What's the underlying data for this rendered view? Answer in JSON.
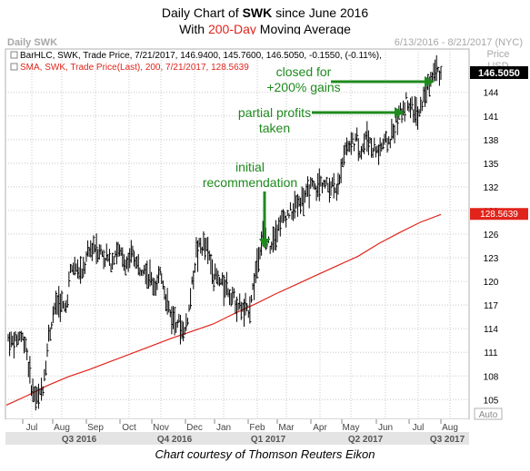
{
  "title": {
    "prefix": "Daily Chart of ",
    "ticker": "SWK",
    "suffix": " since June 2016",
    "line2_prefix": "With ",
    "line2_highlight": "200-Day",
    "line2_suffix": " Moving Average"
  },
  "panel": {
    "name": "Daily SWK",
    "date_range": "6/13/2016 - 8/21/2017 (NYC)",
    "price_header": "Price",
    "currency": "USD",
    "auto_label": "Auto"
  },
  "legend": {
    "bar_line": "BarHLC, SWK, Trade Price, 7/21/2017, 146.9400, 145.7600, 146.5050, -0.1550, (-0.11%),",
    "sma_line": "SMA, SWK, Trade Price(Last), 200, 7/21/2017, 128.5639"
  },
  "last_price_label": "146.5050",
  "sma_price_label": "128.5639",
  "caption": "Chart courtesy of Thomson Reuters Eikon",
  "colors": {
    "bars": "#000000",
    "sma": "#e0241b",
    "annotation": "#1e8a1e",
    "grid": "#c8c8c8",
    "price_tag": "#e0241b"
  },
  "chart_data": {
    "type": "line",
    "ylim": [
      102.5,
      149.5
    ],
    "y_ticks": [
      105,
      108,
      111,
      114,
      117,
      120,
      123,
      126,
      129,
      132,
      135,
      138,
      141,
      144
    ],
    "x_tick_labels": [
      "Jul",
      "Aug",
      "Sep",
      "Oct",
      "Nov",
      "Dec",
      "Jan",
      "Feb",
      "Mar",
      "Apr",
      "May",
      "Jun",
      "Jul",
      "Aug"
    ],
    "quarter_labels": [
      "Q3 2016",
      "Q4 2016",
      "Q1 2017",
      "Q2 2017",
      "Q3 2017"
    ],
    "series": [
      {
        "name": "SWK",
        "values": [
          112.8,
          112.0,
          113.2,
          112.5,
          107.0,
          104.8,
          106.0,
          112.5,
          116.5,
          117.6,
          116.2,
          121.5,
          121.8,
          120.5,
          123.5,
          124.5,
          124.0,
          123.0,
          122.5,
          124.0,
          123.0,
          122.0,
          123.5,
          121.8,
          122.0,
          120.0,
          119.5,
          121.0,
          116.8,
          115.2,
          114.8,
          113.5,
          117.5,
          123.5,
          124.5,
          124.0,
          121.0,
          120.0,
          119.5,
          118.5,
          117.5,
          116.5,
          116.0,
          119.0,
          124.0,
          125.5,
          124.5,
          126.5,
          127.5,
          128.5,
          129.0,
          130.2,
          130.5,
          132.0,
          131.5,
          132.8,
          132.0,
          132.5,
          131.5,
          137.0,
          137.5,
          138.0,
          136.5,
          138.5,
          137.0,
          136.5,
          137.5,
          137.8,
          140.0,
          141.5,
          143.2,
          142.0,
          140.5,
          143.5,
          145.5,
          147.0,
          146.5
        ]
      },
      {
        "name": "SMA 200",
        "values": [
          104.3,
          105.5,
          106.8,
          107.9,
          108.8,
          109.8,
          110.8,
          111.8,
          112.8,
          113.7,
          114.6,
          115.9,
          117.1,
          118.4,
          119.6,
          120.8,
          122.0,
          123.2,
          124.8,
          126.2,
          127.5,
          128.5
        ]
      }
    ],
    "annotations": [
      {
        "text_lines": [
          "closed for",
          "+200% gains"
        ]
      },
      {
        "text_lines": [
          "partial profits",
          "taken"
        ]
      },
      {
        "text_lines": [
          "initial",
          "recommendation"
        ]
      }
    ]
  }
}
